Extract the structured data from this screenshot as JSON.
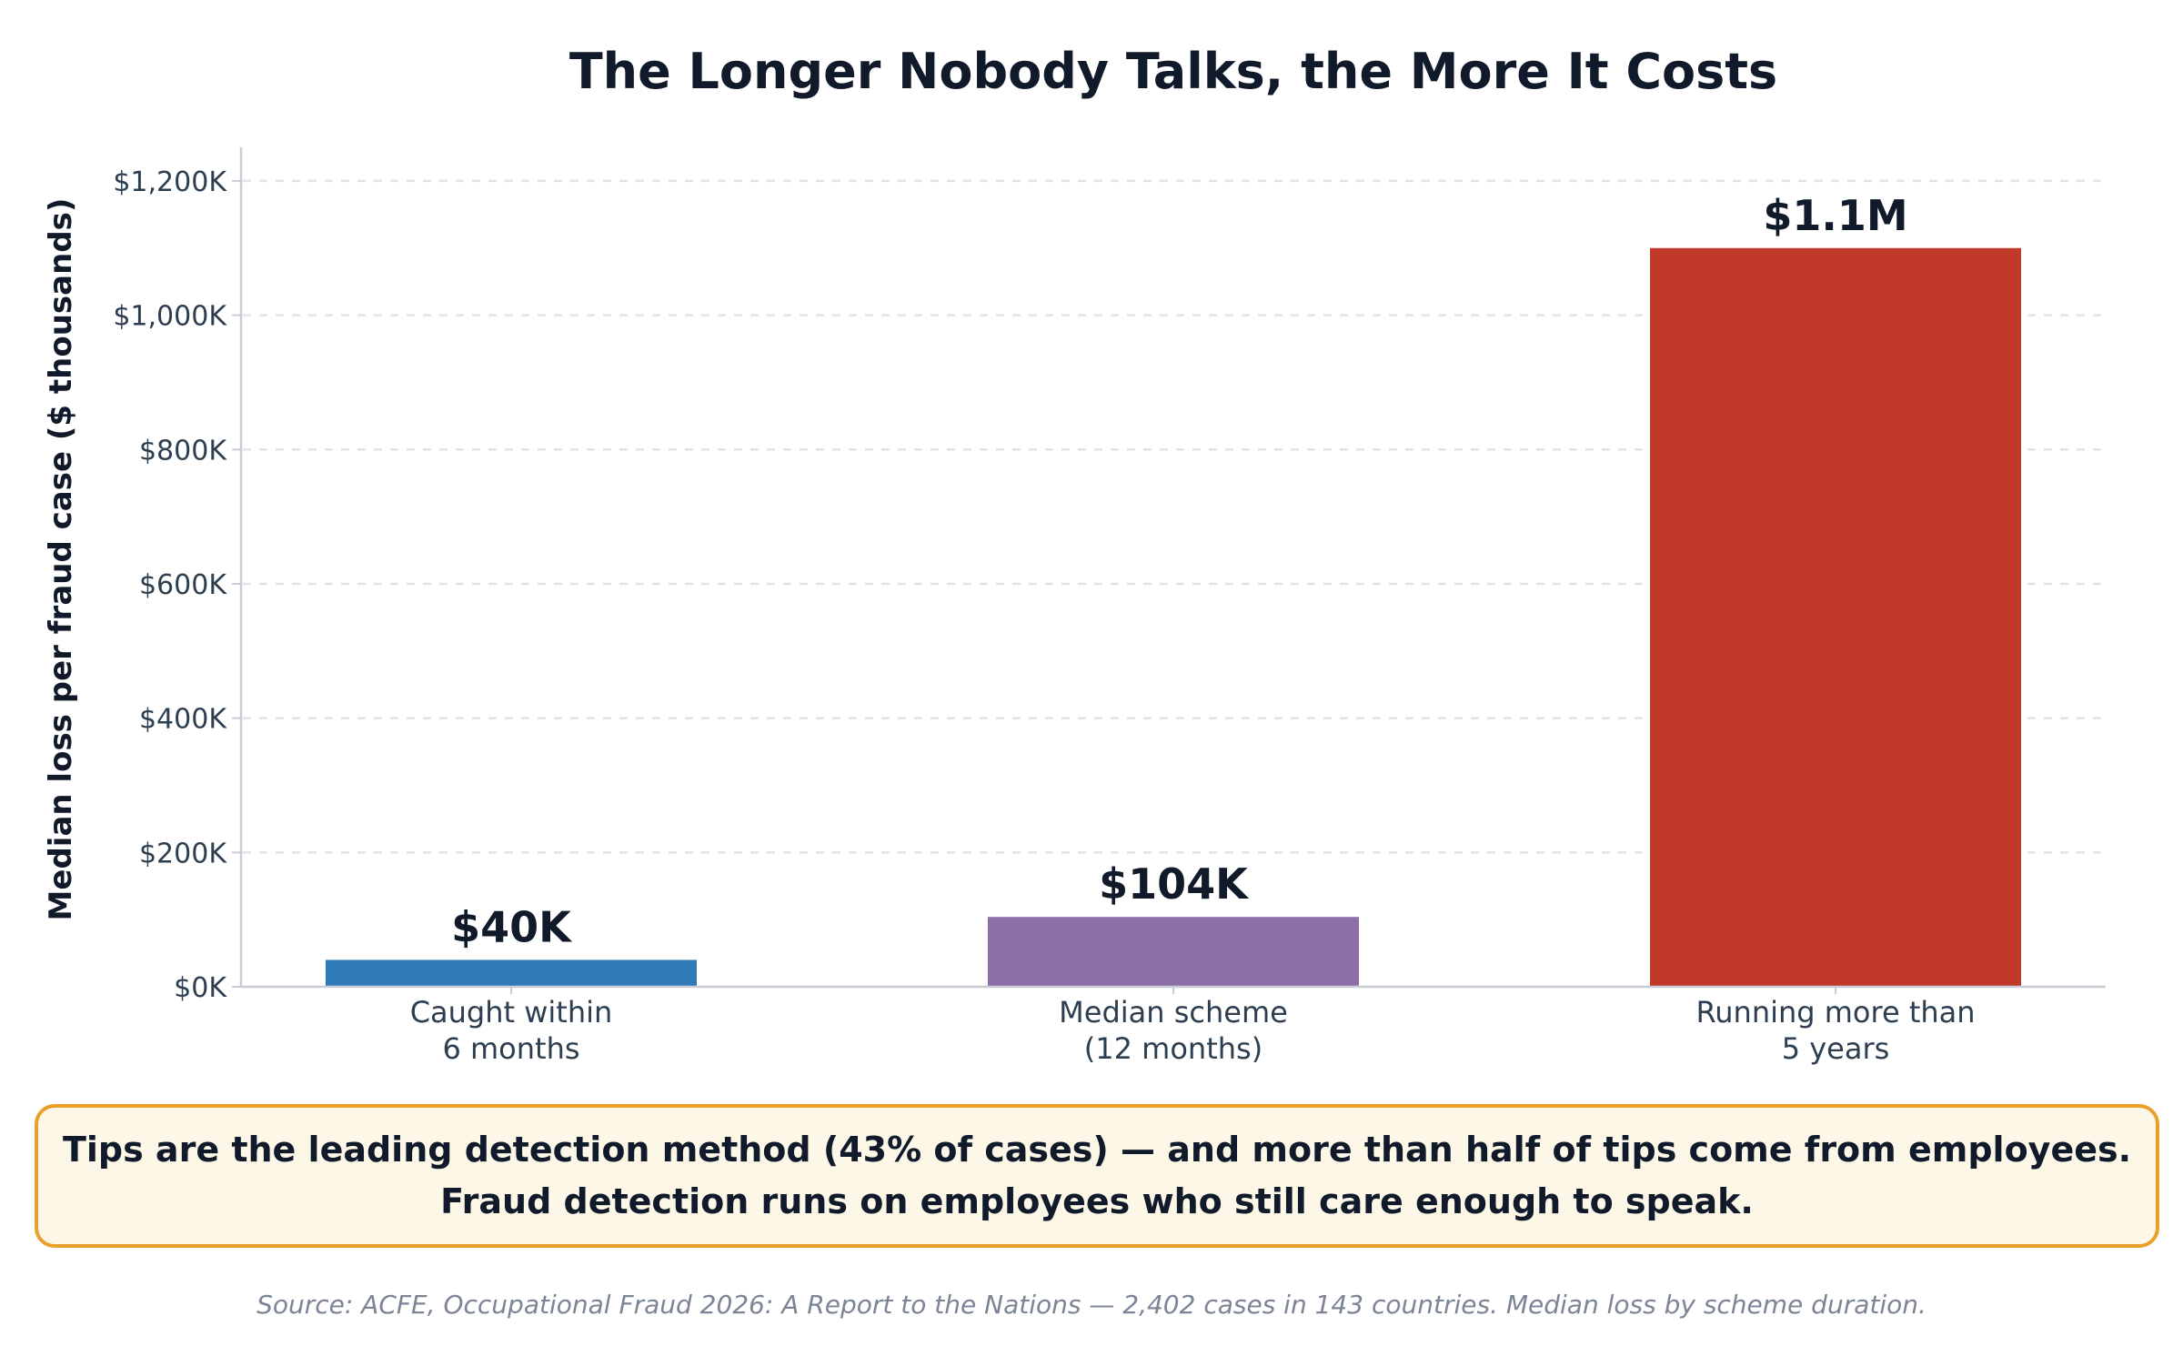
{
  "chart_data": {
    "type": "bar",
    "title": "The Longer Nobody Talks, the More It Costs",
    "xlabel": "",
    "ylabel": "Median loss per fraud case ($ thousands)",
    "categories": [
      [
        "Caught within",
        "6 months"
      ],
      [
        "Median scheme",
        "(12 months)"
      ],
      [
        "Running more than",
        "5 years"
      ]
    ],
    "values": [
      40,
      104,
      1100
    ],
    "value_labels": [
      "$40K",
      "$104K",
      "$1.1M"
    ],
    "bar_colors": [
      "#2e7bb8",
      "#8d6fa8",
      "#c0392b"
    ],
    "ylim": [
      0,
      1250
    ],
    "yticks": [
      0,
      200,
      400,
      600,
      800,
      1000,
      1200
    ],
    "ytick_labels": [
      "$0K",
      "$200K",
      "$400K",
      "$600K",
      "$800K",
      "$1,000K",
      "$1,200K"
    ],
    "grid": "horizontal dashed",
    "legend": "none"
  },
  "callout": {
    "line1": "Tips are the leading detection method (43% of cases) — and more than half of tips come from employees.",
    "line2": "Fraud detection runs on employees who still care enough to speak."
  },
  "source": "Source: ACFE, Occupational Fraud 2026: A Report to the Nations — 2,402 cases in 143 countries. Median loss by scheme duration.",
  "colors": {
    "title": "#111a2b",
    "axis_text": "#2c3e50",
    "grid": "#e3e3e3",
    "callout_border": "#e8a02a",
    "callout_fill": "#fcf7e7",
    "source_text": "#7b8595"
  }
}
